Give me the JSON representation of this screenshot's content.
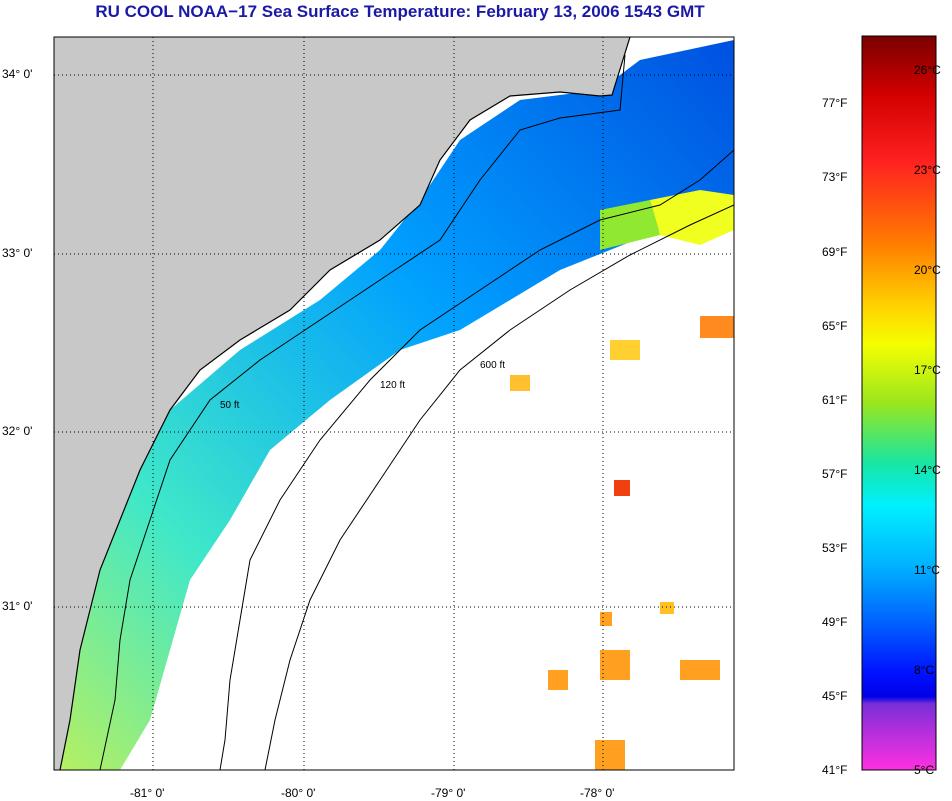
{
  "title": "RU COOL  NOAA−17  Sea Surface Temperature:  February 13, 2006 1543 GMT",
  "latitude_labels": [
    "34° 0'",
    "33° 0'",
    "32° 0'",
    "31° 0'"
  ],
  "longitude_labels": [
    "-81° 0'",
    "-80° 0'",
    "-79° 0'",
    "-78° 0'"
  ],
  "contour_labels": [
    "50 ft",
    "120 ft",
    "600 ft"
  ],
  "colorbar": {
    "fahrenheit": [
      "77°F",
      "73°F",
      "69°F",
      "65°F",
      "61°F",
      "57°F",
      "53°F",
      "49°F",
      "45°F",
      "41°F"
    ],
    "celsius": [
      "26°C",
      "23°C",
      "20°C",
      "17°C",
      "14°C",
      "11°C",
      "8°C",
      "5°C"
    ],
    "colors": [
      "#7a0000",
      "#d20000",
      "#ff2020",
      "#ff7a00",
      "#ffd400",
      "#f4ff00",
      "#9be61e",
      "#19e6a0",
      "#00f0ff",
      "#00b4ff",
      "#0060ff",
      "#0010ff",
      "#0000e6",
      "#7a2fd8",
      "#ff30e0"
    ]
  },
  "colors": {
    "land": "#c8c8c8",
    "title": "#1a1aa6",
    "no_data": "#ffffff"
  }
}
